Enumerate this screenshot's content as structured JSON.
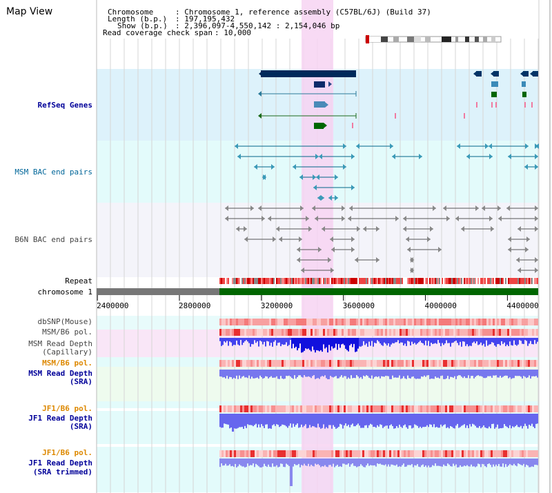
{
  "panel_title": "Map View",
  "info": {
    "chromosome_key": "Chromosome",
    "chromosome_val": ": Chromosome 1, reference assembly (C57BL/6J) (Build 37)",
    "length_key": "Length (b.p.)",
    "length_val": ": 197,195,432",
    "show_key": "Show (b.p.)",
    "show_val": ": 2,396,097-4,550,142 : 2,154,046 bp",
    "coverage_key": "Read coverage check span",
    "coverage_val": ": 10,000"
  },
  "tracks": {
    "refseq": "RefSeq Genes",
    "msm_bac": "MSM BAC end pairs",
    "b6n_bac": "B6N BAC end pairs",
    "repeat": "Repeat",
    "chromosome": "chromosome 1",
    "dbsnp": "dbSNP(Mouse)",
    "msm_b6_pol_1": "MSM/B6 pol.",
    "msm_read_depth_cap_1": "MSM Read Depth",
    "msm_read_depth_cap_2": "(Capillary)",
    "msm_b6_pol_2": "MSM/B6 pol.",
    "msm_read_depth_sra_1": "MSM Read Depth",
    "msm_read_depth_sra_2": "(SRA)",
    "jf1_b6_pol_1": "JF1/B6 pol.",
    "jf1_read_depth_1": "JF1 Read Depth",
    "jf1_read_depth_2": "(SRA)",
    "jf1_b6_pol_2": "JF1/B6 pol.",
    "jf1_trimmed_1": "JF1 Read Depth",
    "jf1_trimmed_2": "(SRA trimmed)"
  },
  "axis": {
    "range": [
      2396097,
      4550142
    ],
    "ticks": [
      "2400000",
      "2800000",
      "3200000",
      "3600000",
      "4000000",
      "4400000"
    ],
    "highlight": [
      3330000,
      3480000
    ]
  },
  "colors": {
    "refseq_bg": "#ddf2fb",
    "msm_bg": "#e3fbfb",
    "b6n_bg": "#f4f4fa",
    "highlight": "#f7d4f2",
    "chromosome_band": "#006600",
    "repeat": "#dd2222",
    "depth_blue": "#3333ee",
    "pol_red": "#ff7777"
  }
}
